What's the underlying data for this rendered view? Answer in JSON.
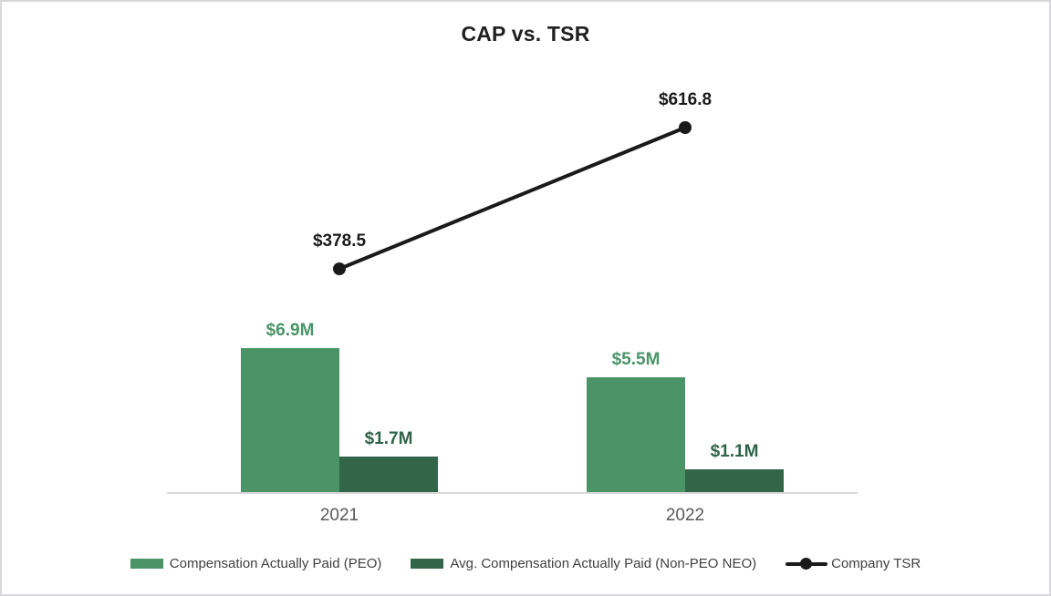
{
  "chart_data": {
    "type": "combo-bar-line",
    "title": "CAP vs. TSR",
    "categories": [
      "2021",
      "2022"
    ],
    "bar_series": [
      {
        "name": "Compensation Actually Paid (PEO)",
        "color": "#4a9468",
        "label_color": "#4a9468",
        "values": [
          6.9,
          5.5
        ],
        "labels": [
          "$6.9M",
          "$5.5M"
        ]
      },
      {
        "name": "Avg. Compensation Actually Paid (Non-PEO NEO)",
        "color": "#336549",
        "label_color": "#2f6349",
        "values": [
          1.7,
          1.1
        ],
        "labels": [
          "$1.7M",
          "$1.1M"
        ]
      }
    ],
    "line_series": {
      "name": "Company TSR",
      "color": "#1a1a1a",
      "values": [
        378.5,
        616.8
      ],
      "labels": [
        "$378.5",
        "$616.8"
      ]
    },
    "legend": {
      "position": "bottom",
      "entries": [
        "Compensation Actually Paid (PEO)",
        "Avg. Compensation Actually Paid (Non-PEO NEO)",
        "Company TSR"
      ]
    },
    "axes": {
      "x_tick_color": "#595959",
      "axis_line_color": "#d9d9d9",
      "y_axis_visible": false,
      "gridlines": false
    },
    "styles": {
      "title_color": "#1f1f1f",
      "legend_text_color": "#404040",
      "background": "#ffffff",
      "border_color": "#d9d9dc"
    }
  }
}
